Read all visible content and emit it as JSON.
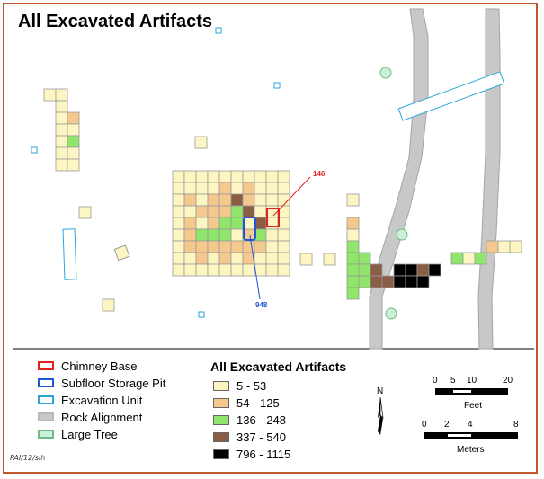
{
  "title": "All Excavated Artifacts",
  "labels": {
    "chimney_ref": "146",
    "pit_ref": "948"
  },
  "legend": {
    "features": [
      {
        "label": "Chimney Base",
        "stroke": "#e0231f",
        "fill": "#ffffff"
      },
      {
        "label": "Subfloor Storage Pit",
        "stroke": "#1f56d6",
        "fill": "#ffffff"
      },
      {
        "label": "Excavation Unit",
        "stroke": "#2aa6d9",
        "fill": "#ffffff"
      },
      {
        "label": "Rock Alignment",
        "stroke": "#b9b9b9",
        "fill": "#c8c8c8"
      },
      {
        "label": "Large Tree",
        "stroke": "#72b98a",
        "fill": "#c9f0d4"
      }
    ],
    "classes_title": "All Excavated Artifacts",
    "classes": [
      {
        "label": "5 - 53",
        "color": "#fdf6c2"
      },
      {
        "label": "54 - 125",
        "color": "#f5c98d"
      },
      {
        "label": "136 - 248",
        "color": "#8fe66a"
      },
      {
        "label": "337 - 540",
        "color": "#8a5d45"
      },
      {
        "label": "796 - 1115",
        "color": "#000000"
      }
    ]
  },
  "north_arrow": "N",
  "scale_feet": {
    "ticks": [
      "0",
      "5",
      "10",
      "20"
    ],
    "unit": "Feet"
  },
  "scale_meters": {
    "ticks": [
      "0",
      "2",
      "4",
      "8"
    ],
    "unit": "Meters"
  },
  "credit": "PAI/12/slh",
  "colors": {
    "border": "#c0562a",
    "unit_outline": "#9a9a9a"
  }
}
